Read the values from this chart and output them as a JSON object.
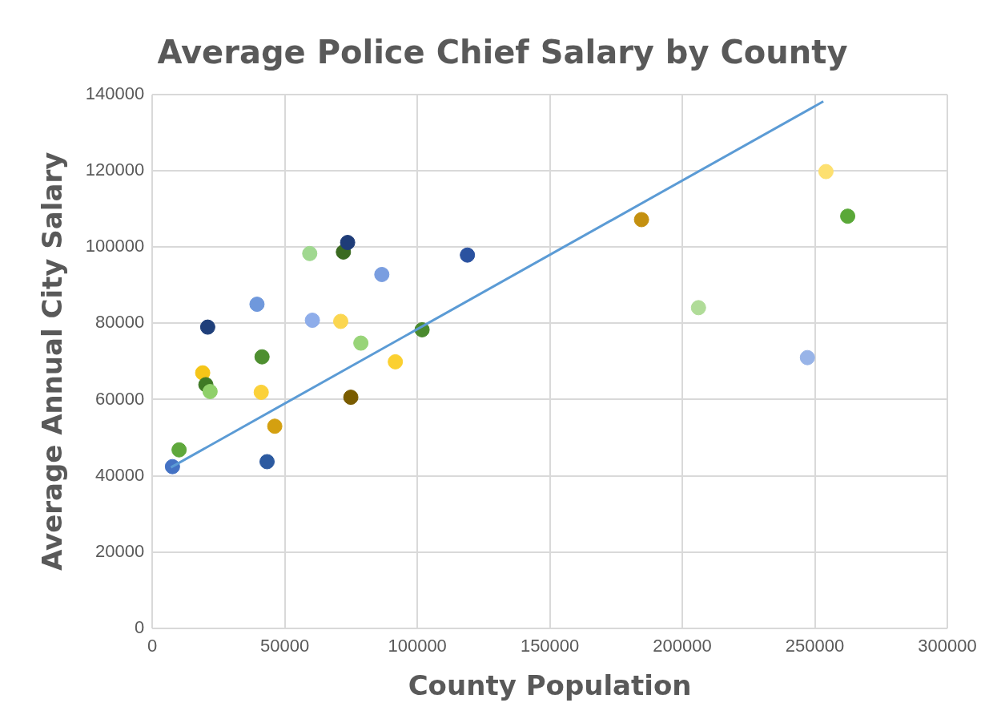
{
  "chart_data": {
    "type": "scatter",
    "title": "Average Police Chief Salary by County",
    "xlabel": "County Population",
    "ylabel": "Average Annual City Salary",
    "xlim": [
      0,
      300000
    ],
    "xticks": [
      0,
      50000,
      100000,
      150000,
      200000,
      250000,
      300000
    ],
    "ylim": [
      0,
      140000
    ],
    "yticks": [
      0,
      20000,
      40000,
      60000,
      80000,
      100000,
      120000,
      140000
    ],
    "grid": true,
    "legend": false,
    "marker": "circle",
    "series": [
      {
        "type": "scatter",
        "x": [
          7600,
          10100,
          20900,
          19000,
          20200,
          21800,
          39500,
          41400,
          41100,
          46200,
          43300,
          59400,
          60400,
          72100,
          73700,
          71100,
          74900,
          78700,
          86600,
          91700,
          101800,
          118900,
          184600,
          206100,
          247200,
          254200,
          262400
        ],
        "values": [
          42400,
          46800,
          79000,
          67000,
          63900,
          62100,
          85000,
          71200,
          61900,
          53000,
          43700,
          98300,
          80800,
          98700,
          101200,
          80500,
          60600,
          74800,
          92800,
          69900,
          78300,
          97900,
          107200,
          84100,
          71000,
          119800,
          108100
        ],
        "colors": [
          "#4472c4",
          "#5fa83c",
          "#1f3f7a",
          "#f5c518",
          "#3f7a25",
          "#8fd06a",
          "#6f98dc",
          "#4e8f30",
          "#fbd13a",
          "#d4a010",
          "#2c5aa0",
          "#a0d890",
          "#8eadea",
          "#3a6a20",
          "#1e3c78",
          "#fbd650",
          "#7a5c00",
          "#98d478",
          "#7a9ee0",
          "#fbd030",
          "#4a8a2e",
          "#2a52a0",
          "#c49010",
          "#b0dc98",
          "#98b4e8",
          "#fde070",
          "#5aa838"
        ]
      },
      {
        "type": "line",
        "x": [
          7000,
          253200
        ],
        "values": [
          42200,
          138200
        ],
        "color": "#5b9bd5",
        "marker": "none",
        "line_style": "solid"
      }
    ]
  }
}
